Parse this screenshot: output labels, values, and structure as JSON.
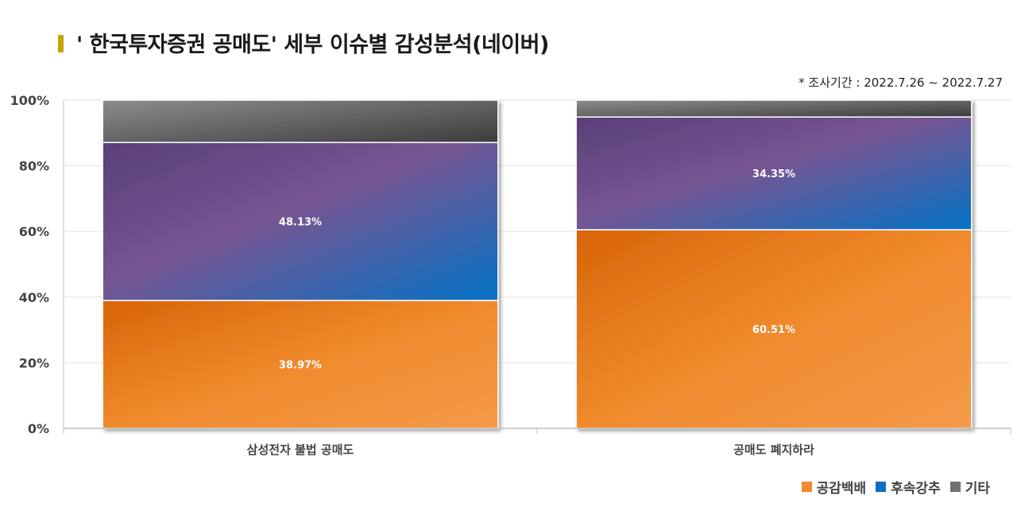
{
  "title": "' 한국투자증권 공매도' 세부 이슈별 감성분석(네이버)",
  "period_note": "* 조사기간 : 2022.7.26 ~ 2022.7.27",
  "colors": {
    "positive": "#f08a2c",
    "neutral": "#0a6fc2",
    "other": "#707070",
    "title_marker": "#c9a400"
  },
  "chart_data": {
    "type": "bar",
    "stacked": true,
    "categories": [
      "삼성전자 불법 공매도",
      "공매도 폐지하라"
    ],
    "series": [
      {
        "name": "공감백배",
        "values": [
          38.97,
          60.51
        ],
        "labels": [
          "38.97%",
          "60.51%"
        ]
      },
      {
        "name": "후속강추",
        "values": [
          48.13,
          34.35
        ],
        "labels": [
          "48.13%",
          "34.35%"
        ]
      },
      {
        "name": "기타",
        "values": [
          12.9,
          5.14
        ],
        "labels": [
          "",
          ""
        ]
      }
    ],
    "ylim": [
      0,
      100
    ],
    "yticks": [
      "0%",
      "20%",
      "40%",
      "60%",
      "80%",
      "100%"
    ],
    "grid": true,
    "legend_position": "bottom-right"
  }
}
